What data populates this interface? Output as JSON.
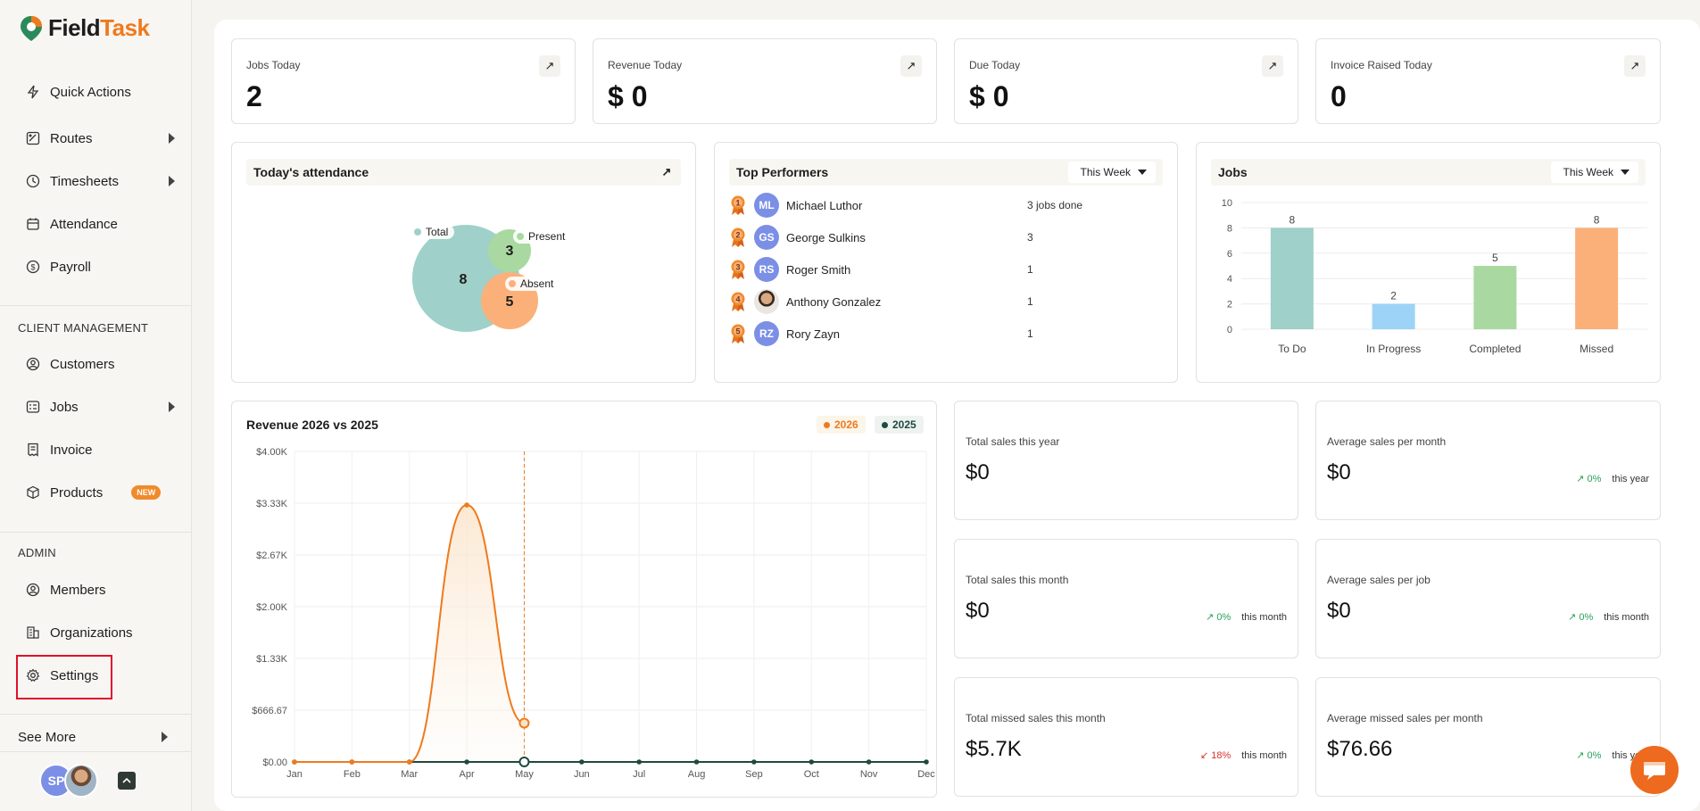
{
  "app": {
    "logo_field": "Field",
    "logo_task": "Task"
  },
  "sidebar": {
    "items": [
      {
        "label": "Quick Actions"
      },
      {
        "label": "Routes"
      },
      {
        "label": "Timesheets"
      },
      {
        "label": "Attendance"
      },
      {
        "label": "Payroll"
      }
    ],
    "client_section": "CLIENT MANAGEMENT",
    "client_items": [
      {
        "label": "Customers"
      },
      {
        "label": "Jobs"
      },
      {
        "label": "Invoice"
      },
      {
        "label": "Products",
        "badge": "NEW"
      }
    ],
    "admin_section": "ADMIN",
    "admin_items": [
      {
        "label": "Members"
      },
      {
        "label": "Organizations"
      },
      {
        "label": "Settings"
      }
    ],
    "see_more": "See More",
    "user_initials": "SP"
  },
  "kpis": [
    {
      "title": "Jobs Today",
      "value": "2"
    },
    {
      "title": "Revenue Today",
      "value": "$ 0"
    },
    {
      "title": "Due Today",
      "value": "$ 0"
    },
    {
      "title": "Invoice Raised Today",
      "value": "0"
    }
  ],
  "attendance": {
    "title": "Today's attendance",
    "total_label": "Total",
    "total_value": "8",
    "present_label": "Present",
    "present_value": "3",
    "absent_label": "Absent",
    "absent_value": "5"
  },
  "performers": {
    "title": "Top Performers",
    "range": "This Week",
    "rows": [
      {
        "rank": "1",
        "initials": "ML",
        "name": "Michael Luthor",
        "jobs": "3 jobs done"
      },
      {
        "rank": "2",
        "initials": "GS",
        "name": "George Sulkins",
        "jobs": "3"
      },
      {
        "rank": "3",
        "initials": "RS",
        "name": "Roger Smith",
        "jobs": "1"
      },
      {
        "rank": "4",
        "initials": "",
        "name": "Anthony Gonzalez",
        "jobs": "1"
      },
      {
        "rank": "5",
        "initials": "RZ",
        "name": "Rory Zayn",
        "jobs": "1"
      }
    ]
  },
  "jobs_panel": {
    "title": "Jobs",
    "range": "This Week"
  },
  "revenue_panel": {
    "title": "Revenue 2026 vs 2025",
    "legend_2026": "2026",
    "legend_2025": "2025"
  },
  "stats": [
    {
      "title": "Total sales this year",
      "value": "$0"
    },
    {
      "title": "Average sales per month",
      "value": "$0",
      "trend": "0%",
      "period": "this year"
    },
    {
      "title": "Total sales this month",
      "value": "$0",
      "trend": "0%",
      "period": "this month"
    },
    {
      "title": "Average sales per job",
      "value": "$0",
      "trend": "0%",
      "period": "this month"
    },
    {
      "title": "Total missed sales this month",
      "value": "$5.7K",
      "trend": "18%",
      "period": "this month"
    },
    {
      "title": "Average missed sales per month",
      "value": "$76.66",
      "trend": "0%",
      "period": "this year"
    }
  ],
  "colors": {
    "accent": "#ef7a1d",
    "todo": "#9fd0c9",
    "in_progress": "#9dd3f7",
    "completed": "#a9d9a0",
    "missed": "#fbb07a",
    "line_2025": "#1f4a40"
  },
  "chart_data": [
    {
      "type": "bar",
      "title": "Jobs",
      "categories": [
        "To Do",
        "In Progress",
        "Completed",
        "Missed"
      ],
      "values": [
        8,
        2,
        5,
        8
      ],
      "ylim": [
        0,
        10
      ],
      "yticks": [
        "0",
        "2",
        "4",
        "6",
        "8",
        "10"
      ],
      "grid": true
    },
    {
      "type": "line",
      "title": "Revenue 2026 vs 2025",
      "categories": [
        "Jan",
        "Feb",
        "Mar",
        "Apr",
        "May",
        "Jun",
        "Jul",
        "Aug",
        "Sep",
        "Oct",
        "Nov",
        "Dec"
      ],
      "yticks": [
        "$0.00",
        "$666.67",
        "$1.33K",
        "$2.00K",
        "$2.67K",
        "$3.33K",
        "$4.00K"
      ],
      "ylim": [
        0,
        4000
      ],
      "series": [
        {
          "name": "2026",
          "values": [
            0,
            0,
            0,
            3310,
            500,
            null,
            null,
            null,
            null,
            null,
            null,
            null
          ]
        },
        {
          "name": "2025",
          "values": [
            0,
            0,
            0,
            0,
            0,
            0,
            0,
            0,
            0,
            0,
            0,
            0
          ]
        }
      ],
      "grid": true,
      "legend": "top-right"
    }
  ]
}
